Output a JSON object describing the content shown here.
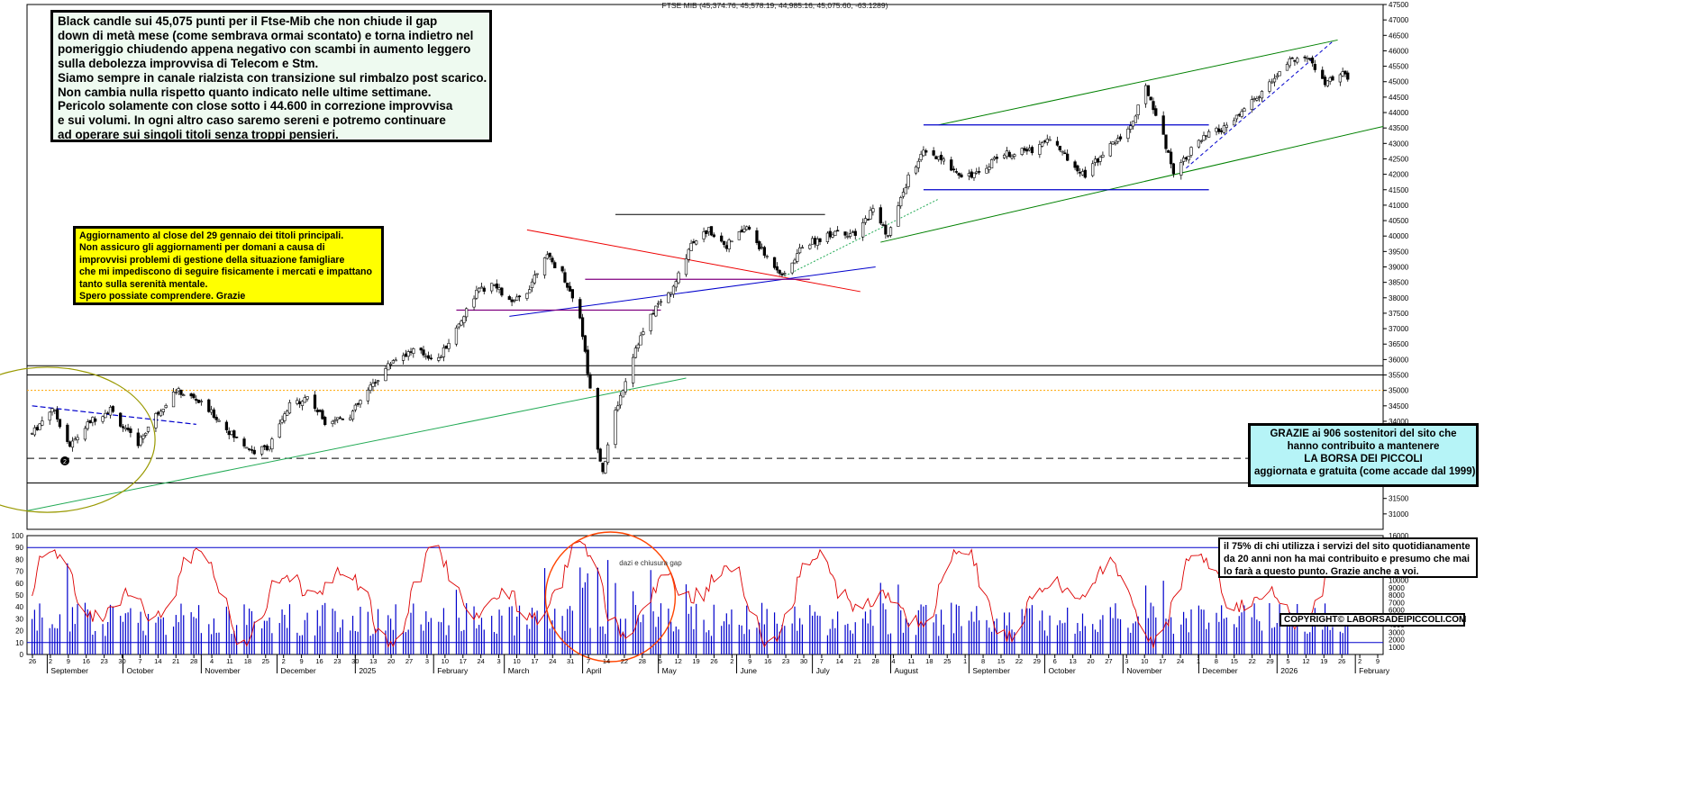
{
  "header": {
    "ohlc_text": "FTSE MIB (45,374.76, 45,578.19, 44,985.16, 45,075.60, -63.1289)"
  },
  "notes": {
    "main": [
      "Black candle sui 45,075 punti per il Ftse-Mib che non chiude il gap",
      "down di metà mese (come sembrava ormai scontato) e torna indietro nel",
      "pomeriggio chiudendo appena negativo con scambi in aumento leggero",
      "sulla debolezza improvvisa di Telecom e Stm.",
      "Siamo sempre in canale rialzista con transizione sul rimbalzo post scarico.",
      "Non cambia nulla rispetto quanto indicato nelle ultime settimane.",
      "Pericolo solamente con close sotto i 44.600 in correzione improvvisa",
      "e sui volumi. In ogni altro caso saremo sereni e potremo continuare",
      "ad operare sui singoli titoli senza troppi pensieri."
    ],
    "update": [
      "Aggiornamento al close del 29 gennaio dei titoli principali.",
      "Non assicuro gli aggiornamenti per domani a causa di",
      "improvvisi problemi di gestione della situazione famigliare",
      "che mi impediscono di seguire fisicamente i mercati e impattano",
      "tanto sulla serenità mentale.",
      "Spero possiate comprendere. Grazie"
    ],
    "thanks": [
      "GRAZIE ai 906  sostenitori del sito che",
      "hanno contribuito a mantenere",
      "LA BORSA DEI PICCOLI",
      "aggiornata e gratuita (come accade dal 1999)"
    ],
    "users": [
      "il 75%  di chi utilizza i servizi del sito quotidianamente",
      "da 20 anni non ha mai contribuito e presumo che mai",
      "lo farà a questo punto. Grazie anche a voi."
    ],
    "copyright": "COPYRIGHT© LABORSADEIPICCOLI.COM",
    "gap_label": "dazi e chiusura gap",
    "marker": "2"
  },
  "chart_data": [
    {
      "type": "candlestick",
      "series_name": "FTSE MIB",
      "ylim": [
        30500,
        47500
      ],
      "yticks": [
        31000,
        31500,
        32000,
        32500,
        33000,
        33500,
        34000,
        34500,
        35000,
        35500,
        36000,
        36500,
        37000,
        37500,
        38000,
        38500,
        39000,
        39500,
        40000,
        40500,
        41000,
        41500,
        42000,
        42500,
        43000,
        43500,
        44000,
        44500,
        45000,
        45500,
        46000,
        46500,
        47000,
        47500
      ],
      "last_close": 45075.6,
      "price_path": [
        [
          "2024-08-26",
          33600
        ],
        [
          "2024-09-03",
          34450
        ],
        [
          "2024-09-10",
          33200
        ],
        [
          "2024-09-18",
          34000
        ],
        [
          "2024-09-26",
          34400
        ],
        [
          "2024-10-02",
          33700
        ],
        [
          "2024-10-07",
          33300
        ],
        [
          "2024-10-14",
          34200
        ],
        [
          "2024-10-22",
          35000
        ],
        [
          "2024-10-30",
          34700
        ],
        [
          "2024-11-06",
          34200
        ],
        [
          "2024-11-14",
          33500
        ],
        [
          "2024-11-22",
          33000
        ],
        [
          "2024-11-28",
          33200
        ],
        [
          "2024-12-06",
          34500
        ],
        [
          "2024-12-13",
          34800
        ],
        [
          "2024-12-20",
          34000
        ],
        [
          "2024-12-30",
          34200
        ],
        [
          "2025-01-08",
          35200
        ],
        [
          "2025-01-16",
          36000
        ],
        [
          "2025-01-24",
          36300
        ],
        [
          "2025-02-03",
          36000
        ],
        [
          "2025-02-10",
          37000
        ],
        [
          "2025-02-18",
          38200
        ],
        [
          "2025-02-25",
          38400
        ],
        [
          "2025-03-04",
          37800
        ],
        [
          "2025-03-10",
          38200
        ],
        [
          "2025-03-17",
          39400
        ],
        [
          "2025-03-24",
          38800
        ],
        [
          "2025-03-31",
          37400
        ],
        [
          "2025-04-07",
          33200
        ],
        [
          "2025-04-09",
          32400
        ],
        [
          "2025-04-14",
          34300
        ],
        [
          "2025-04-22",
          36400
        ],
        [
          "2025-04-30",
          37700
        ],
        [
          "2025-05-07",
          38300
        ],
        [
          "2025-05-14",
          39800
        ],
        [
          "2025-05-21",
          40200
        ],
        [
          "2025-05-28",
          39700
        ],
        [
          "2025-06-05",
          40300
        ],
        [
          "2025-06-12",
          39400
        ],
        [
          "2025-06-20",
          38700
        ],
        [
          "2025-06-27",
          39700
        ],
        [
          "2025-07-04",
          39900
        ],
        [
          "2025-07-11",
          40200
        ],
        [
          "2025-07-18",
          40000
        ],
        [
          "2025-07-25",
          40900
        ],
        [
          "2025-07-31",
          40000
        ],
        [
          "2025-08-08",
          41900
        ],
        [
          "2025-08-14",
          42700
        ],
        [
          "2025-08-22",
          42400
        ],
        [
          "2025-08-29",
          42000
        ],
        [
          "2025-09-05",
          42000
        ],
        [
          "2025-09-12",
          42600
        ],
        [
          "2025-09-19",
          42700
        ],
        [
          "2025-09-26",
          42800
        ],
        [
          "2025-10-03",
          43200
        ],
        [
          "2025-10-10",
          42500
        ],
        [
          "2025-10-17",
          42000
        ],
        [
          "2025-10-24",
          42700
        ],
        [
          "2025-10-31",
          43200
        ],
        [
          "2025-11-05",
          43700
        ],
        [
          "2025-11-10",
          44800
        ],
        [
          "2025-11-14",
          44000
        ],
        [
          "2025-11-21",
          42100
        ],
        [
          "2025-11-28",
          42800
        ],
        [
          "2025-12-05",
          43300
        ],
        [
          "2025-12-12",
          43500
        ],
        [
          "2025-12-19",
          44100
        ],
        [
          "2025-12-29",
          44900
        ],
        [
          "2026-01-05",
          45600
        ],
        [
          "2026-01-09",
          45800
        ],
        [
          "2026-01-14",
          45700
        ],
        [
          "2026-01-20",
          44900
        ],
        [
          "2026-01-26",
          45300
        ],
        [
          "2026-01-29",
          45075
        ]
      ],
      "x_month_labels": [
        "September",
        "October",
        "November",
        "December",
        "2025",
        "February",
        "March",
        "April",
        "May",
        "June",
        "July",
        "August",
        "September",
        "October",
        "November",
        "December",
        "2026",
        "February"
      ],
      "x_day_labels": [
        "26",
        "2",
        "9",
        "16",
        "23",
        "30",
        "7",
        "14",
        "21",
        "28",
        "4",
        "11",
        "18",
        "25",
        "2",
        "9",
        "16",
        "23",
        "30",
        "13",
        "20",
        "27",
        "3",
        "10",
        "17",
        "24",
        "3",
        "10",
        "17",
        "24",
        "31",
        "7",
        "14",
        "22",
        "28",
        "5",
        "12",
        "19",
        "26",
        "2",
        "9",
        "16",
        "23",
        "30",
        "7",
        "14",
        "21",
        "28",
        "4",
        "11",
        "18",
        "25",
        "1",
        "8",
        "15",
        "22",
        "29",
        "6",
        "13",
        "20",
        "27",
        "3",
        "10",
        "17",
        "24",
        "1",
        "8",
        "15",
        "22",
        "29",
        "5",
        "12",
        "19",
        "26",
        "2",
        "9"
      ],
      "horizontal_levels": [
        {
          "y": 35800,
          "color": "#000000",
          "style": "solid"
        },
        {
          "y": 35500,
          "color": "#000000",
          "style": "solid"
        },
        {
          "y": 35000,
          "color": "#ffa500",
          "style": "dotted"
        },
        {
          "y": 32800,
          "color": "#000000",
          "style": "dashed"
        },
        {
          "y": 32000,
          "color": "#000000",
          "style": "solid"
        }
      ]
    },
    {
      "type": "bar+line",
      "name": "oscillator and volume",
      "ylim_left": [
        0,
        100
      ],
      "yticks_left": [
        0,
        10,
        20,
        30,
        40,
        50,
        60,
        70,
        80,
        90,
        100
      ],
      "ylim_right": [
        0,
        16000
      ],
      "yticks_right": [
        1000,
        2000,
        3000,
        4000,
        5000,
        6000,
        7000,
        8000,
        9000,
        10000,
        11000,
        12000,
        13000,
        14000,
        15000,
        16000
      ],
      "levels": [
        90,
        10
      ],
      "bar_color": "#0000cc",
      "line_color": "#dd0000"
    }
  ],
  "colors": {
    "channel": "#008000",
    "support_blue": "#0000cc",
    "downtrend_red": "#ee0000",
    "purple": "#800080",
    "trend_green": "#22aa55",
    "ellipse_olive": "#999900",
    "circle_orange": "#ff4400"
  }
}
